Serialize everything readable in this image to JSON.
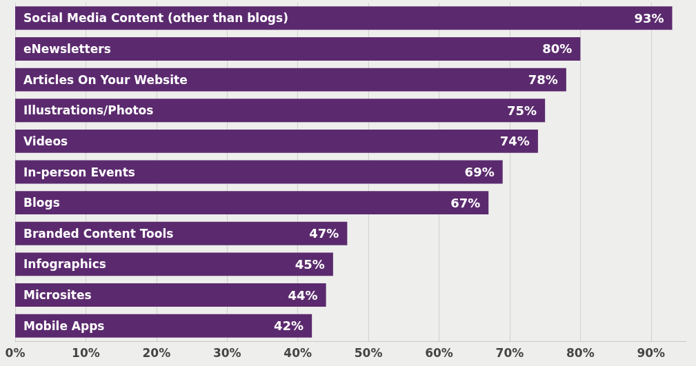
{
  "chart_data": {
    "type": "bar",
    "orientation": "horizontal",
    "categories": [
      "Social Media Content (other than blogs)",
      "eNewsletters",
      "Articles On Your Website",
      "Illustrations/Photos",
      "Videos",
      "In-person Events",
      "Blogs",
      "Branded Content Tools",
      "Infographics",
      "Microsites",
      "Mobile Apps"
    ],
    "values": [
      93,
      80,
      78,
      75,
      74,
      69,
      67,
      47,
      45,
      44,
      42
    ],
    "value_labels": [
      "93%",
      "80%",
      "78%",
      "75%",
      "74%",
      "69%",
      "67%",
      "47%",
      "45%",
      "44%",
      "42%"
    ],
    "color": "#5b2a6e",
    "xlim": [
      0,
      95
    ],
    "xticks": [
      {
        "value": 0,
        "label": "0%"
      },
      {
        "value": 10,
        "label": "10%"
      },
      {
        "value": 20,
        "label": "20%"
      },
      {
        "value": 30,
        "label": "30%"
      },
      {
        "value": 40,
        "label": "40%"
      },
      {
        "value": 50,
        "label": "50%"
      },
      {
        "value": 60,
        "label": "60%"
      },
      {
        "value": 70,
        "label": "70%"
      },
      {
        "value": 80,
        "label": "80%"
      },
      {
        "value": 90,
        "label": "90%"
      }
    ],
    "grid": "x"
  }
}
